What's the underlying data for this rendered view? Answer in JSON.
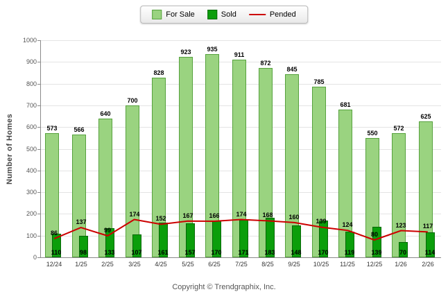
{
  "chart_data": {
    "type": "bar",
    "categories": [
      "12/24",
      "1/25",
      "2/25",
      "3/25",
      "4/25",
      "5/25",
      "6/25",
      "7/25",
      "8/25",
      "9/25",
      "10/25",
      "11/25",
      "12/25",
      "1/26",
      "2/26"
    ],
    "series": [
      {
        "name": "For Sale",
        "type": "bar",
        "color": "#9ad380",
        "border": "#56a13d",
        "values": [
          573,
          566,
          640,
          700,
          828,
          923,
          935,
          911,
          872,
          845,
          785,
          681,
          550,
          572,
          625
        ]
      },
      {
        "name": "Sold",
        "type": "bar",
        "color": "#0b9e0b",
        "border": "#066806",
        "values": [
          110,
          98,
          133,
          107,
          161,
          157,
          170,
          171,
          183,
          148,
          170,
          119,
          139,
          70,
          114
        ]
      },
      {
        "name": "Pended",
        "type": "line",
        "color": "#cc0000",
        "values": [
          86,
          137,
          99,
          174,
          152,
          167,
          166,
          174,
          168,
          160,
          139,
          124,
          80,
          123,
          117
        ]
      }
    ],
    "title": "",
    "xlabel": "",
    "ylabel": "Number of Homes",
    "ylim": [
      0,
      1000
    ],
    "ytick_step": 100,
    "grid": true,
    "legend_position": "top-center"
  },
  "footer": {
    "copyright": "Copyright © Trendgraphix, Inc."
  }
}
